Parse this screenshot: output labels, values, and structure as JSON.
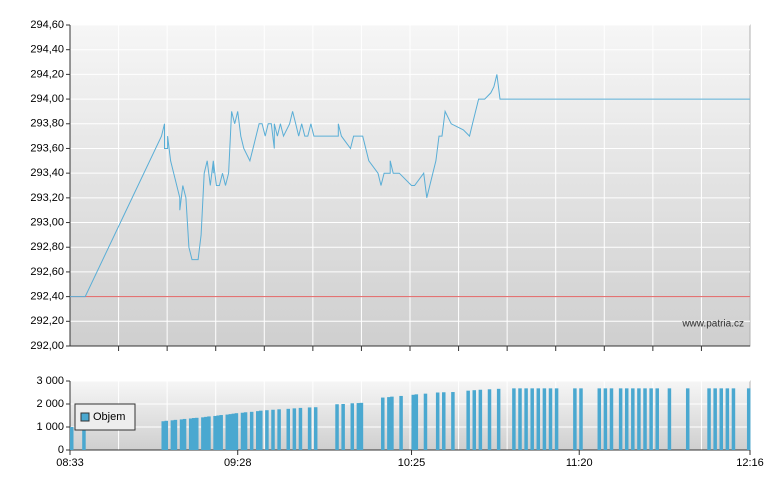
{
  "chart_data": [
    {
      "type": "line",
      "x": [
        "08:33",
        "08:38",
        "09:03",
        "09:04",
        "09:04",
        "09:05",
        "09:05",
        "09:06",
        "09:06",
        "09:07",
        "09:09",
        "09:09",
        "09:10",
        "09:11",
        "09:12",
        "09:13",
        "09:15",
        "09:16",
        "09:17",
        "09:18",
        "09:19",
        "09:20",
        "09:20",
        "09:20",
        "09:21",
        "09:22",
        "09:23",
        "09:24",
        "09:25",
        "09:26",
        "09:27",
        "09:28",
        "09:29",
        "09:30",
        "09:32",
        "09:33",
        "09:35",
        "09:36",
        "09:37",
        "09:38",
        "09:39",
        "09:40",
        "09:40",
        "09:41",
        "09:42",
        "09:43",
        "09:45",
        "09:46",
        "09:47",
        "09:48",
        "09:49",
        "09:50",
        "09:51",
        "09:52",
        "09:53",
        "10:01",
        "10:01",
        "10:02",
        "10:05",
        "10:06",
        "10:09",
        "10:11",
        "10:14",
        "10:15",
        "10:16",
        "10:18",
        "10:18",
        "10:19",
        "10:21",
        "10:25",
        "10:26",
        "10:29",
        "10:30",
        "10:31",
        "10:33",
        "10:34",
        "10:35",
        "10:36",
        "10:38",
        "10:42",
        "10:44",
        "10:45",
        "10:47",
        "10:49",
        "10:51",
        "10:52",
        "10:53",
        "10:54",
        "12:16"
      ],
      "values": [
        292.4,
        292.4,
        293.7,
        293.8,
        293.6,
        293.6,
        293.7,
        293.5,
        293.5,
        293.4,
        293.2,
        293.1,
        293.3,
        293.2,
        292.8,
        292.7,
        292.7,
        292.9,
        293.4,
        293.5,
        293.3,
        293.5,
        293.4,
        293.5,
        293.3,
        293.3,
        293.4,
        293.3,
        293.4,
        293.9,
        293.8,
        293.9,
        293.7,
        293.6,
        293.5,
        293.6,
        293.8,
        293.8,
        293.7,
        293.8,
        293.8,
        293.6,
        293.8,
        293.7,
        293.8,
        293.7,
        293.8,
        293.9,
        293.8,
        293.7,
        293.8,
        293.7,
        293.7,
        293.8,
        293.7,
        293.7,
        293.8,
        293.7,
        293.6,
        293.7,
        293.7,
        293.5,
        293.4,
        293.3,
        293.4,
        293.4,
        293.5,
        293.4,
        293.4,
        293.3,
        293.3,
        293.4,
        293.2,
        293.3,
        293.5,
        293.7,
        293.7,
        293.9,
        293.8,
        293.75,
        293.7,
        293.8,
        294.0,
        294.0,
        294.05,
        294.1,
        294.2,
        294.0,
        294.0
      ],
      "color": "#5aaed6",
      "reference": {
        "value": 292.4,
        "color": "#e06060"
      },
      "watermark": "www.patria.cz",
      "xlim": [
        "08:33",
        "12:16"
      ],
      "ylim": [
        292.0,
        294.6
      ],
      "yticks": [
        {
          "value": 292.0,
          "label": "292,00"
        },
        {
          "value": 292.2,
          "label": "292,20"
        },
        {
          "value": 292.4,
          "label": "292,40"
        },
        {
          "value": 292.6,
          "label": "292,60"
        },
        {
          "value": 292.8,
          "label": "292,80"
        },
        {
          "value": 293.0,
          "label": "293,00"
        },
        {
          "value": 293.2,
          "label": "293,20"
        },
        {
          "value": 293.4,
          "label": "293,40"
        },
        {
          "value": 293.6,
          "label": "293,60"
        },
        {
          "value": 293.8,
          "label": "293,80"
        },
        {
          "value": 294.0,
          "label": "294,00"
        },
        {
          "value": 294.2,
          "label": "294,20"
        },
        {
          "value": 294.4,
          "label": "294,40"
        },
        {
          "value": 294.6,
          "label": "294,60"
        }
      ],
      "grid": true
    },
    {
      "type": "bar",
      "x": [
        "08:33",
        "08:37",
        "09:03",
        "09:04",
        "09:06",
        "09:07",
        "09:09",
        "09:10",
        "09:12",
        "09:13",
        "09:14",
        "09:16",
        "09:17",
        "09:18",
        "09:20",
        "09:21",
        "09:22",
        "09:24",
        "09:25",
        "09:26",
        "09:27",
        "09:29",
        "09:30",
        "09:32",
        "09:34",
        "09:35",
        "09:37",
        "09:39",
        "09:41",
        "09:44",
        "09:46",
        "09:48",
        "09:51",
        "09:53",
        "10:00",
        "10:02",
        "10:05",
        "10:07",
        "10:08",
        "10:15",
        "10:17",
        "10:18",
        "10:21",
        "10:25",
        "10:26",
        "10:29",
        "10:33",
        "10:35",
        "10:38",
        "10:43",
        "10:45",
        "10:47",
        "10:50",
        "10:53",
        "10:58",
        "11:00",
        "11:02",
        "11:04",
        "11:06",
        "11:08",
        "11:10",
        "11:12",
        "11:18",
        "11:20",
        "11:26",
        "11:28",
        "11:30",
        "11:33",
        "11:35",
        "11:37",
        "11:39",
        "11:41",
        "11:43",
        "11:45",
        "11:49",
        "11:55",
        "12:02",
        "12:04",
        "12:06",
        "12:08",
        "12:10",
        "12:15"
      ],
      "series": [
        {
          "name": "Objem",
          "color": "#4aa8d0",
          "values": [
            1000,
            1050,
            1250,
            1270,
            1290,
            1310,
            1330,
            1350,
            1370,
            1390,
            1400,
            1420,
            1440,
            1460,
            1480,
            1500,
            1520,
            1540,
            1560,
            1580,
            1600,
            1620,
            1640,
            1660,
            1690,
            1710,
            1730,
            1750,
            1770,
            1790,
            1810,
            1830,
            1850,
            1860,
            1990,
            2000,
            2030,
            2040,
            2050,
            2280,
            2300,
            2320,
            2350,
            2400,
            2420,
            2450,
            2500,
            2510,
            2520,
            2580,
            2600,
            2620,
            2640,
            2660,
            2680,
            2680,
            2680,
            2680,
            2680,
            2680,
            2680,
            2680,
            2680,
            2680,
            2680,
            2680,
            2680,
            2680,
            2680,
            2680,
            2680,
            2680,
            2680,
            2680,
            2680,
            2680,
            2680,
            2680,
            2680,
            2680,
            2680,
            2680
          ]
        }
      ],
      "xlim": [
        "08:33",
        "12:16"
      ],
      "xticks": [
        "08:33",
        "09:28",
        "10:25",
        "11:20",
        "12:16"
      ],
      "ylim": [
        0,
        3000
      ],
      "yticks": [
        0,
        {
          "value": 1000,
          "label": "1 000"
        },
        {
          "value": 2000,
          "label": "2 000"
        },
        {
          "value": 3000,
          "label": "3 000"
        }
      ],
      "legend": "lower-left",
      "grid": true
    }
  ]
}
